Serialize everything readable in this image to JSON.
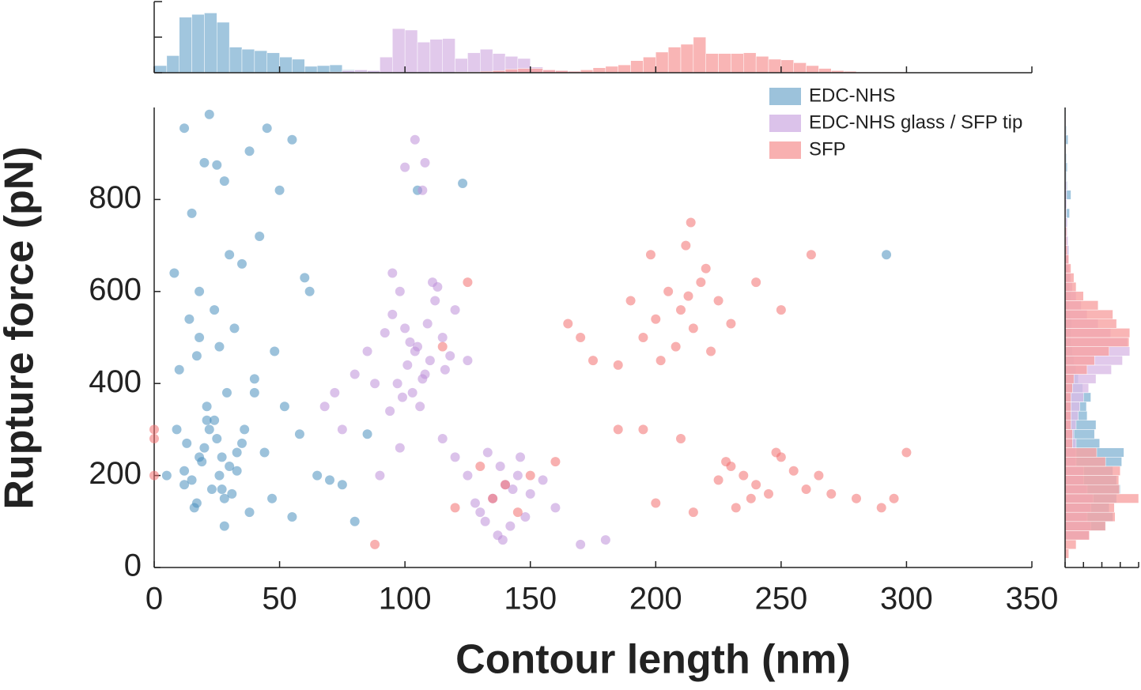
{
  "chart_data": [
    {
      "type": "scatter",
      "xlabel": "Contour length (nm)",
      "ylabel": "Rupture force (pN)",
      "xlim": [
        0,
        350
      ],
      "xticks": [
        0,
        50,
        100,
        150,
        200,
        250,
        300,
        350
      ],
      "ylim": [
        0,
        1000
      ],
      "yticks": [
        0,
        200,
        400,
        600,
        800
      ],
      "legend": "upper right",
      "series": [
        {
          "name": "EDC-NHS",
          "color": "#4a90bd",
          "x": [
            22,
            12,
            45,
            55,
            25,
            38,
            15,
            28,
            50,
            20,
            30,
            8,
            18,
            35,
            60,
            42,
            24,
            14,
            32,
            48,
            26,
            10,
            40,
            17,
            29,
            52,
            21,
            36,
            58,
            13,
            44,
            27,
            19,
            33,
            65,
            70,
            75,
            5,
            23,
            31,
            47,
            16,
            38,
            55,
            80,
            105,
            123,
            85,
            9,
            62,
            292,
            28,
            12,
            18,
            40,
            20,
            25,
            15,
            30,
            22,
            18,
            27,
            35,
            12,
            24,
            28,
            21,
            33,
            17,
            26
          ],
          "y": [
            985,
            955,
            955,
            930,
            875,
            905,
            770,
            840,
            820,
            880,
            680,
            640,
            600,
            660,
            630,
            720,
            560,
            540,
            520,
            470,
            480,
            430,
            410,
            460,
            380,
            350,
            320,
            300,
            290,
            270,
            250,
            240,
            230,
            210,
            200,
            190,
            180,
            200,
            170,
            160,
            150,
            130,
            120,
            110,
            100,
            820,
            835,
            290,
            300,
            600,
            680,
            90,
            180,
            500,
            380,
            260,
            280,
            190,
            220,
            300,
            240,
            170,
            270,
            210,
            320,
            150,
            350,
            250,
            140,
            200
          ]
        },
        {
          "name": "EDC-NHS glass / SFP tip",
          "color": "#bd8fd9",
          "x": [
            105,
            100,
            110,
            95,
            115,
            108,
            98,
            112,
            103,
            118,
            92,
            106,
            101,
            113,
            97,
            109,
            104,
            120,
            94,
            116,
            102,
            107,
            111,
            99,
            125,
            88,
            80,
            72,
            75,
            68,
            85,
            108,
            104,
            100,
            107,
            95,
            140,
            135,
            145,
            130,
            150,
            138,
            142,
            128,
            155,
            133,
            148,
            137,
            160,
            143,
            132,
            146,
            139,
            125,
            170,
            180,
            115,
            120,
            90,
            98
          ],
          "y": [
            480,
            520,
            450,
            550,
            500,
            420,
            600,
            580,
            380,
            460,
            510,
            350,
            440,
            610,
            400,
            530,
            470,
            560,
            340,
            430,
            490,
            410,
            620,
            370,
            450,
            400,
            420,
            380,
            300,
            350,
            470,
            880,
            930,
            870,
            820,
            640,
            180,
            150,
            200,
            120,
            160,
            220,
            90,
            140,
            190,
            250,
            110,
            70,
            130,
            170,
            100,
            240,
            60,
            200,
            50,
            60,
            280,
            240,
            200,
            260
          ]
        },
        {
          "name": "SFP",
          "color": "#f27070",
          "x": [
            210,
            205,
            215,
            200,
            220,
            195,
            225,
            212,
            208,
            218,
            190,
            230,
            202,
            214,
            222,
            198,
            240,
            185,
            250,
            213,
            235,
            240,
            230,
            245,
            250,
            225,
            255,
            260,
            238,
            228,
            232,
            248,
            265,
            270,
            215,
            200,
            210,
            195,
            280,
            290,
            300,
            295,
            140,
            135,
            150,
            145,
            160,
            175,
            165,
            130,
            185,
            170,
            120,
            115,
            125,
            0,
            0,
            0,
            88,
            262
          ],
          "y": [
            560,
            600,
            520,
            540,
            650,
            500,
            580,
            700,
            480,
            620,
            580,
            530,
            450,
            750,
            470,
            680,
            620,
            440,
            560,
            590,
            200,
            180,
            220,
            160,
            240,
            190,
            210,
            170,
            150,
            230,
            130,
            250,
            200,
            160,
            120,
            140,
            280,
            300,
            150,
            130,
            250,
            150,
            180,
            150,
            200,
            120,
            230,
            450,
            530,
            220,
            300,
            500,
            130,
            480,
            620,
            300,
            280,
            200,
            50,
            680
          ]
        }
      ]
    },
    {
      "type": "histogram",
      "orientation": "vertical",
      "xlim": [
        0,
        350
      ],
      "xticks": [
        0,
        50,
        100,
        150,
        200,
        250,
        300,
        350
      ],
      "ylim": [
        0,
        100
      ],
      "yticks": [
        0,
        50,
        100
      ],
      "bins": [
        0,
        5,
        10,
        15,
        20,
        25,
        30,
        35,
        40,
        45,
        50,
        55,
        60,
        65,
        70,
        75,
        80,
        85,
        90,
        95,
        100,
        105,
        110,
        115,
        120,
        125,
        130,
        135,
        140,
        145,
        150,
        155,
        160,
        165,
        170,
        175,
        180,
        185,
        190,
        195,
        200,
        205,
        210,
        215,
        220,
        225,
        230,
        235,
        240,
        245,
        250,
        255,
        260,
        265,
        270,
        275,
        280,
        285,
        290,
        295,
        300
      ],
      "series": [
        {
          "color": "#8ab8d6",
          "values": [
            10,
            24,
            78,
            82,
            84,
            71,
            36,
            33,
            31,
            28,
            22,
            19,
            9,
            10,
            11,
            4,
            3,
            2,
            1,
            1,
            1,
            1,
            1,
            1,
            1,
            0,
            0,
            0,
            0,
            0,
            0,
            0,
            0,
            0,
            0,
            0,
            0,
            0,
            0,
            0,
            0,
            0,
            0,
            0,
            0,
            0,
            0,
            0,
            0,
            0,
            0,
            0,
            0,
            0,
            0,
            0,
            0,
            0,
            1,
            0
          ]
        },
        {
          "color": "#d9bce6",
          "values": [
            0,
            0,
            0,
            0,
            0,
            0,
            0,
            0,
            0,
            0,
            0,
            0,
            0,
            0,
            1,
            3,
            4,
            3,
            22,
            62,
            60,
            43,
            47,
            48,
            20,
            28,
            33,
            27,
            23,
            20,
            8,
            4,
            3,
            2,
            1,
            0,
            0,
            0,
            0,
            0,
            0,
            0,
            0,
            0,
            0,
            0,
            0,
            0,
            0,
            0,
            0,
            0,
            0,
            0,
            0,
            0,
            0,
            0,
            0,
            0
          ]
        },
        {
          "color": "#f7a3a3",
          "values": [
            0,
            0,
            0,
            0,
            0,
            0,
            0,
            0,
            0,
            0,
            0,
            0,
            0,
            0,
            0,
            0,
            1,
            0,
            0,
            0,
            0,
            0,
            0,
            0,
            1,
            1,
            2,
            3,
            5,
            6,
            6,
            4,
            3,
            2,
            4,
            7,
            9,
            11,
            17,
            22,
            29,
            36,
            40,
            50,
            27,
            27,
            27,
            28,
            23,
            19,
            18,
            14,
            10,
            6,
            3,
            2,
            1,
            1,
            1,
            1
          ]
        }
      ]
    },
    {
      "type": "histogram",
      "orientation": "horizontal",
      "xlim": [
        0,
        100
      ],
      "xticks": [
        0,
        25,
        50,
        75,
        100
      ],
      "ylim": [
        0,
        1000
      ],
      "bins": [
        0,
        20,
        40,
        60,
        80,
        100,
        120,
        140,
        160,
        180,
        200,
        220,
        240,
        260,
        280,
        300,
        320,
        340,
        360,
        380,
        400,
        420,
        440,
        460,
        480,
        500,
        520,
        540,
        560,
        580,
        600,
        620,
        640,
        660,
        680,
        700,
        720,
        740,
        760,
        780,
        800,
        820,
        840,
        860,
        880,
        900,
        920,
        940,
        960,
        980,
        1000
      ],
      "series": [
        {
          "color": "#8ab8d6",
          "values": [
            0,
            0,
            0,
            32,
            55,
            65,
            60,
            70,
            75,
            70,
            65,
            77,
            80,
            47,
            40,
            42,
            30,
            29,
            35,
            24,
            18,
            15,
            12,
            10,
            8,
            8,
            9,
            7,
            6,
            8,
            6,
            6,
            4,
            4,
            5,
            3,
            3,
            3,
            6,
            2,
            8,
            3,
            2,
            3,
            2,
            1,
            4,
            2,
            1,
            1
          ]
        },
        {
          "color": "#d9bce6",
          "values": [
            0,
            0,
            0,
            33,
            35,
            30,
            35,
            38,
            30,
            25,
            25,
            15,
            15,
            15,
            12,
            15,
            18,
            20,
            25,
            32,
            42,
            63,
            78,
            88,
            85,
            62,
            45,
            30,
            22,
            15,
            10,
            8,
            6,
            5,
            5,
            4,
            3,
            3,
            2,
            2,
            2,
            2,
            1,
            1,
            1,
            1,
            1,
            1,
            1,
            0
          ]
        },
        {
          "color": "#f7a3a3",
          "values": [
            0,
            5,
            15,
            33,
            55,
            68,
            67,
            100,
            74,
            73,
            75,
            55,
            43,
            10,
            10,
            8,
            8,
            8,
            8,
            10,
            12,
            30,
            40,
            60,
            87,
            88,
            70,
            65,
            45,
            25,
            15,
            12,
            8,
            5,
            3,
            2,
            2,
            1,
            1,
            0,
            0,
            0,
            0,
            0,
            0,
            0,
            0,
            0,
            0,
            0
          ]
        }
      ]
    }
  ]
}
